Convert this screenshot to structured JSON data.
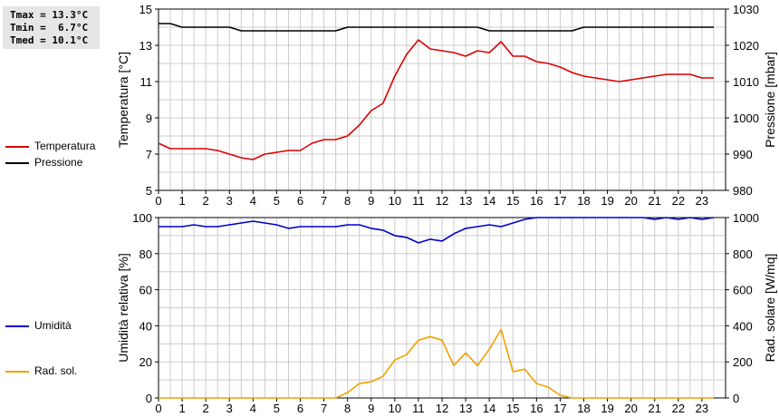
{
  "stats": {
    "tmax": "Tmax = 13.3°C",
    "tmin": "Tmin =  6.7°C",
    "tmed": "Tmed = 10.1°C"
  },
  "legend": {
    "temperatura": "Temperatura",
    "pressione": "Pressione",
    "umidita": "Umidità",
    "rad_sol": "Rad. sol."
  },
  "colors": {
    "temperatura": "#dd0000",
    "pressione": "#000000",
    "umidita": "#0000cc",
    "rad_sol": "#f0a000",
    "grid": "#cccccc"
  },
  "chart_data": [
    {
      "type": "line",
      "title": "",
      "xlabel": "",
      "xlim": [
        0,
        24
      ],
      "xticks": [
        0,
        1,
        2,
        3,
        4,
        5,
        6,
        7,
        8,
        9,
        10,
        11,
        12,
        13,
        14,
        15,
        16,
        17,
        18,
        19,
        20,
        21,
        22,
        23
      ],
      "y_left": {
        "label": "Temperatura [°C]",
        "lim": [
          5,
          15
        ],
        "ticks": [
          5,
          7,
          9,
          11,
          13,
          15
        ]
      },
      "y_right": {
        "label": "Pressione [mbar]",
        "lim": [
          980,
          1030
        ],
        "ticks": [
          980,
          990,
          1000,
          1010,
          1020,
          1030
        ]
      },
      "grid": true,
      "series": [
        {
          "name": "Temperatura",
          "axis": "left",
          "x": [
            0,
            0.5,
            1,
            1.5,
            2,
            2.5,
            3,
            3.5,
            4,
            4.5,
            5,
            5.5,
            6,
            6.5,
            7,
            7.5,
            8,
            8.5,
            9,
            9.5,
            10,
            10.5,
            11,
            11.5,
            12,
            12.5,
            13,
            13.5,
            14,
            14.5,
            15,
            15.5,
            16,
            16.5,
            17,
            17.5,
            18,
            18.5,
            19,
            19.5,
            20,
            20.5,
            21,
            21.5,
            22,
            22.5,
            23,
            23.5
          ],
          "values": [
            7.6,
            7.3,
            7.3,
            7.3,
            7.3,
            7.2,
            7.0,
            6.8,
            6.7,
            7.0,
            7.1,
            7.2,
            7.2,
            7.6,
            7.8,
            7.8,
            8.0,
            8.6,
            9.4,
            9.8,
            11.3,
            12.5,
            13.3,
            12.8,
            12.7,
            12.6,
            12.4,
            12.7,
            12.6,
            13.2,
            12.4,
            12.4,
            12.1,
            12.0,
            11.8,
            11.5,
            11.3,
            11.2,
            11.1,
            11.0,
            11.1,
            11.2,
            11.3,
            11.4,
            11.4,
            11.4,
            11.2,
            11.2
          ]
        },
        {
          "name": "Pressione",
          "axis": "right",
          "x": [
            0,
            0.5,
            1,
            1.5,
            2,
            2.5,
            3,
            3.5,
            4,
            4.5,
            5,
            5.5,
            6,
            6.5,
            7,
            7.5,
            8,
            8.5,
            9,
            9.5,
            10,
            10.5,
            11,
            11.5,
            12,
            12.5,
            13,
            13.5,
            14,
            14.5,
            15,
            15.5,
            16,
            16.5,
            17,
            17.5,
            18,
            18.5,
            19,
            19.5,
            20,
            20.5,
            21,
            21.5,
            22,
            22.5,
            23,
            23.5
          ],
          "values": [
            1026,
            1026,
            1025,
            1025,
            1025,
            1025,
            1025,
            1024,
            1024,
            1024,
            1024,
            1024,
            1024,
            1024,
            1024,
            1024,
            1025,
            1025,
            1025,
            1025,
            1025,
            1025,
            1025,
            1025,
            1025,
            1025,
            1025,
            1025,
            1024,
            1024,
            1024,
            1024,
            1024,
            1024,
            1024,
            1024,
            1025,
            1025,
            1025,
            1025,
            1025,
            1025,
            1025,
            1025,
            1025,
            1025,
            1025,
            1025
          ]
        }
      ]
    },
    {
      "type": "line",
      "title": "",
      "xlabel": "",
      "xlim": [
        0,
        24
      ],
      "xticks": [
        0,
        1,
        2,
        3,
        4,
        5,
        6,
        7,
        8,
        9,
        10,
        11,
        12,
        13,
        14,
        15,
        16,
        17,
        18,
        19,
        20,
        21,
        22,
        23
      ],
      "y_left": {
        "label": "Umidità relativa [%]",
        "lim": [
          0,
          100
        ],
        "ticks": [
          0,
          20,
          40,
          60,
          80,
          100
        ]
      },
      "y_right": {
        "label": "Rad. solare [W/mq]",
        "lim": [
          0,
          1000
        ],
        "ticks": [
          0,
          200,
          400,
          600,
          800,
          1000
        ]
      },
      "grid": true,
      "series": [
        {
          "name": "Umidità",
          "axis": "left",
          "x": [
            0,
            0.5,
            1,
            1.5,
            2,
            2.5,
            3,
            3.5,
            4,
            4.5,
            5,
            5.5,
            6,
            6.5,
            7,
            7.5,
            8,
            8.5,
            9,
            9.5,
            10,
            10.5,
            11,
            11.5,
            12,
            12.5,
            13,
            13.5,
            14,
            14.5,
            15,
            15.5,
            16,
            16.5,
            17,
            17.5,
            18,
            18.5,
            19,
            19.5,
            20,
            20.5,
            21,
            21.5,
            22,
            22.5,
            23,
            23.5
          ],
          "values": [
            95,
            95,
            95,
            96,
            95,
            95,
            96,
            97,
            98,
            97,
            96,
            94,
            95,
            95,
            95,
            95,
            96,
            96,
            94,
            93,
            90,
            89,
            86,
            88,
            87,
            91,
            94,
            95,
            96,
            95,
            97,
            99,
            100,
            100,
            100,
            100,
            100,
            100,
            100,
            100,
            100,
            100,
            99,
            100,
            99,
            100,
            99,
            100
          ]
        },
        {
          "name": "Rad. sol.",
          "axis": "right",
          "x": [
            0,
            0.5,
            1,
            1.5,
            2,
            2.5,
            3,
            3.5,
            4,
            4.5,
            5,
            5.5,
            6,
            6.5,
            7,
            7.5,
            8,
            8.5,
            9,
            9.5,
            10,
            10.5,
            11,
            11.5,
            12,
            12.5,
            13,
            13.5,
            14,
            14.5,
            15,
            15.5,
            16,
            16.5,
            17,
            17.5,
            18,
            18.5,
            19,
            19.5,
            20,
            20.5,
            21,
            21.5,
            22,
            22.5,
            23,
            23.5
          ],
          "values": [
            0,
            0,
            0,
            0,
            0,
            0,
            0,
            0,
            0,
            0,
            0,
            0,
            0,
            0,
            0,
            0,
            30,
            80,
            90,
            120,
            210,
            240,
            320,
            340,
            320,
            180,
            250,
            180,
            270,
            380,
            145,
            160,
            80,
            60,
            15,
            0,
            0,
            0,
            0,
            0,
            0,
            0,
            0,
            0,
            0,
            0,
            0,
            0
          ]
        }
      ]
    }
  ]
}
